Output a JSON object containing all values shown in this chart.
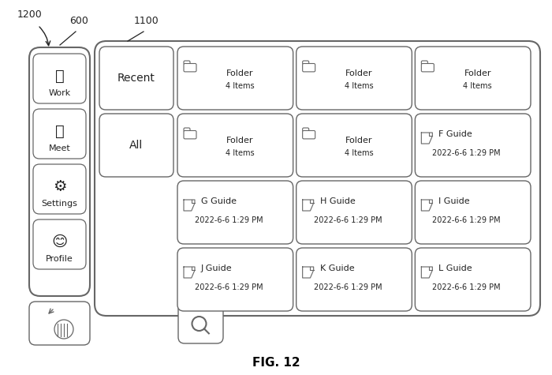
{
  "title": "FIG. 12",
  "bg_color": "#ffffff",
  "label_1200": "1200",
  "label_600": "600",
  "label_1100": "1100",
  "sidebar_labels": [
    "Work",
    "Meet",
    "Settings",
    "Profile"
  ],
  "nav_items": [
    "Recent",
    "All"
  ],
  "grid_items": [
    [
      {
        "type": "folder",
        "name": "Folder",
        "sub": "4 Items"
      },
      {
        "type": "folder",
        "name": "Folder",
        "sub": "4 Items"
      },
      {
        "type": "folder",
        "name": "Folder",
        "sub": "4 Items"
      }
    ],
    [
      {
        "type": "folder",
        "name": "Folder",
        "sub": "4 Items"
      },
      {
        "type": "folder",
        "name": "Folder",
        "sub": "4 Items"
      },
      {
        "type": "file",
        "name": "F Guide",
        "sub": "2022-6-6 1:29 PM"
      }
    ],
    [
      {
        "type": "file",
        "name": "G Guide",
        "sub": "2022-6-6 1:29 PM"
      },
      {
        "type": "file",
        "name": "H Guide",
        "sub": "2022-6-6 1:29 PM"
      },
      {
        "type": "file",
        "name": "I Guide",
        "sub": "2022-6-6 1:29 PM"
      }
    ],
    [
      {
        "type": "file",
        "name": "J Guide",
        "sub": "2022-6-6 1:29 PM"
      },
      {
        "type": "file",
        "name": "K Guide",
        "sub": "2022-6-6 1:29 PM"
      },
      {
        "type": "file",
        "name": "L Guide",
        "sub": "2022-6-6 1:29 PM"
      }
    ]
  ],
  "line_color": "#666666",
  "text_color": "#222222",
  "fig_caption_fontsize": 11,
  "sidebar_icon_fontsize": 11,
  "sidebar_label_fontsize": 8,
  "nav_fontsize": 10,
  "cell_name_fontsize": 8,
  "cell_sub_fontsize": 7
}
